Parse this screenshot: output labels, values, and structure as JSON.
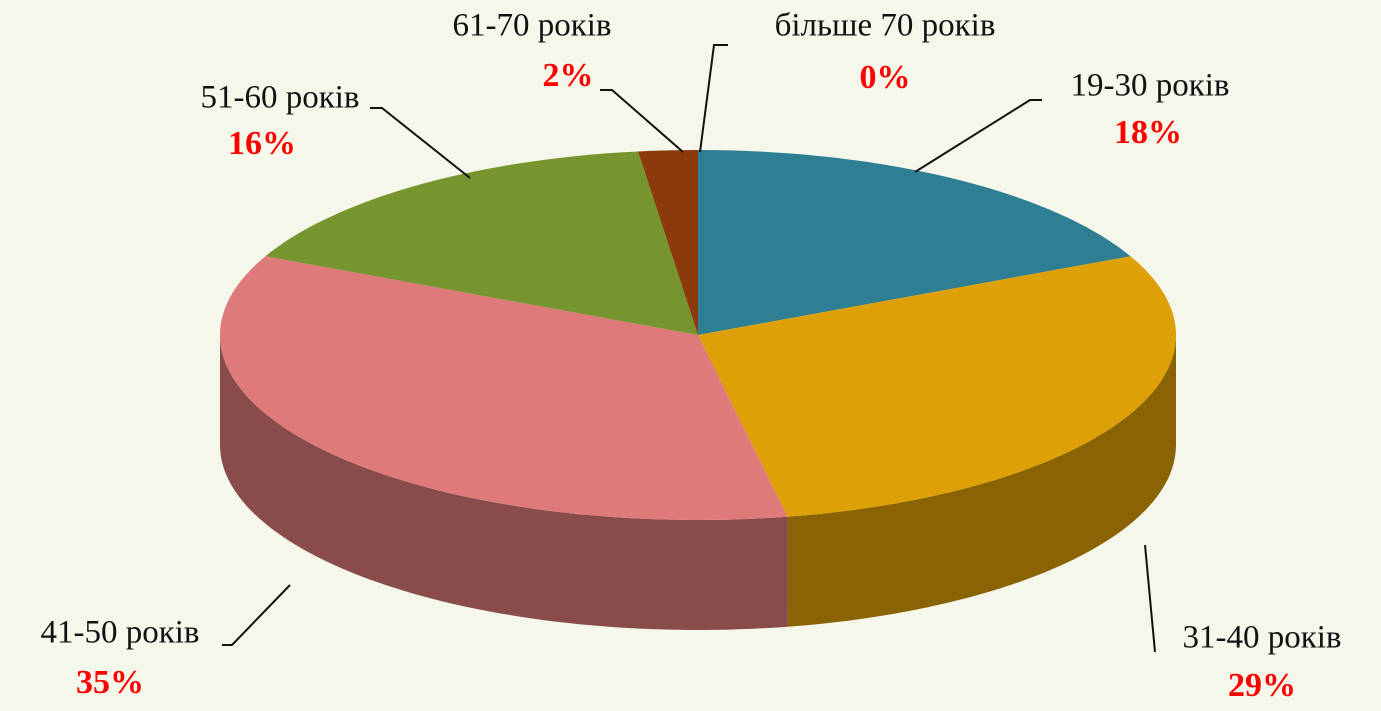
{
  "chart_data": {
    "type": "pie3d",
    "categories": [
      "19-30 років",
      "31-40 років",
      "41-50 років",
      "51-60 років",
      "61-70 років",
      "більше 70 років"
    ],
    "values": [
      18,
      29,
      35,
      16,
      2,
      0
    ],
    "value_labels": [
      "18%",
      "29%",
      "35%",
      "16%",
      "2%",
      "0%"
    ],
    "colors": [
      "#2e7f93",
      "#dda006",
      "#de7a79",
      "#76952e",
      "#8b3a0a",
      "#5a4a8a"
    ]
  }
}
